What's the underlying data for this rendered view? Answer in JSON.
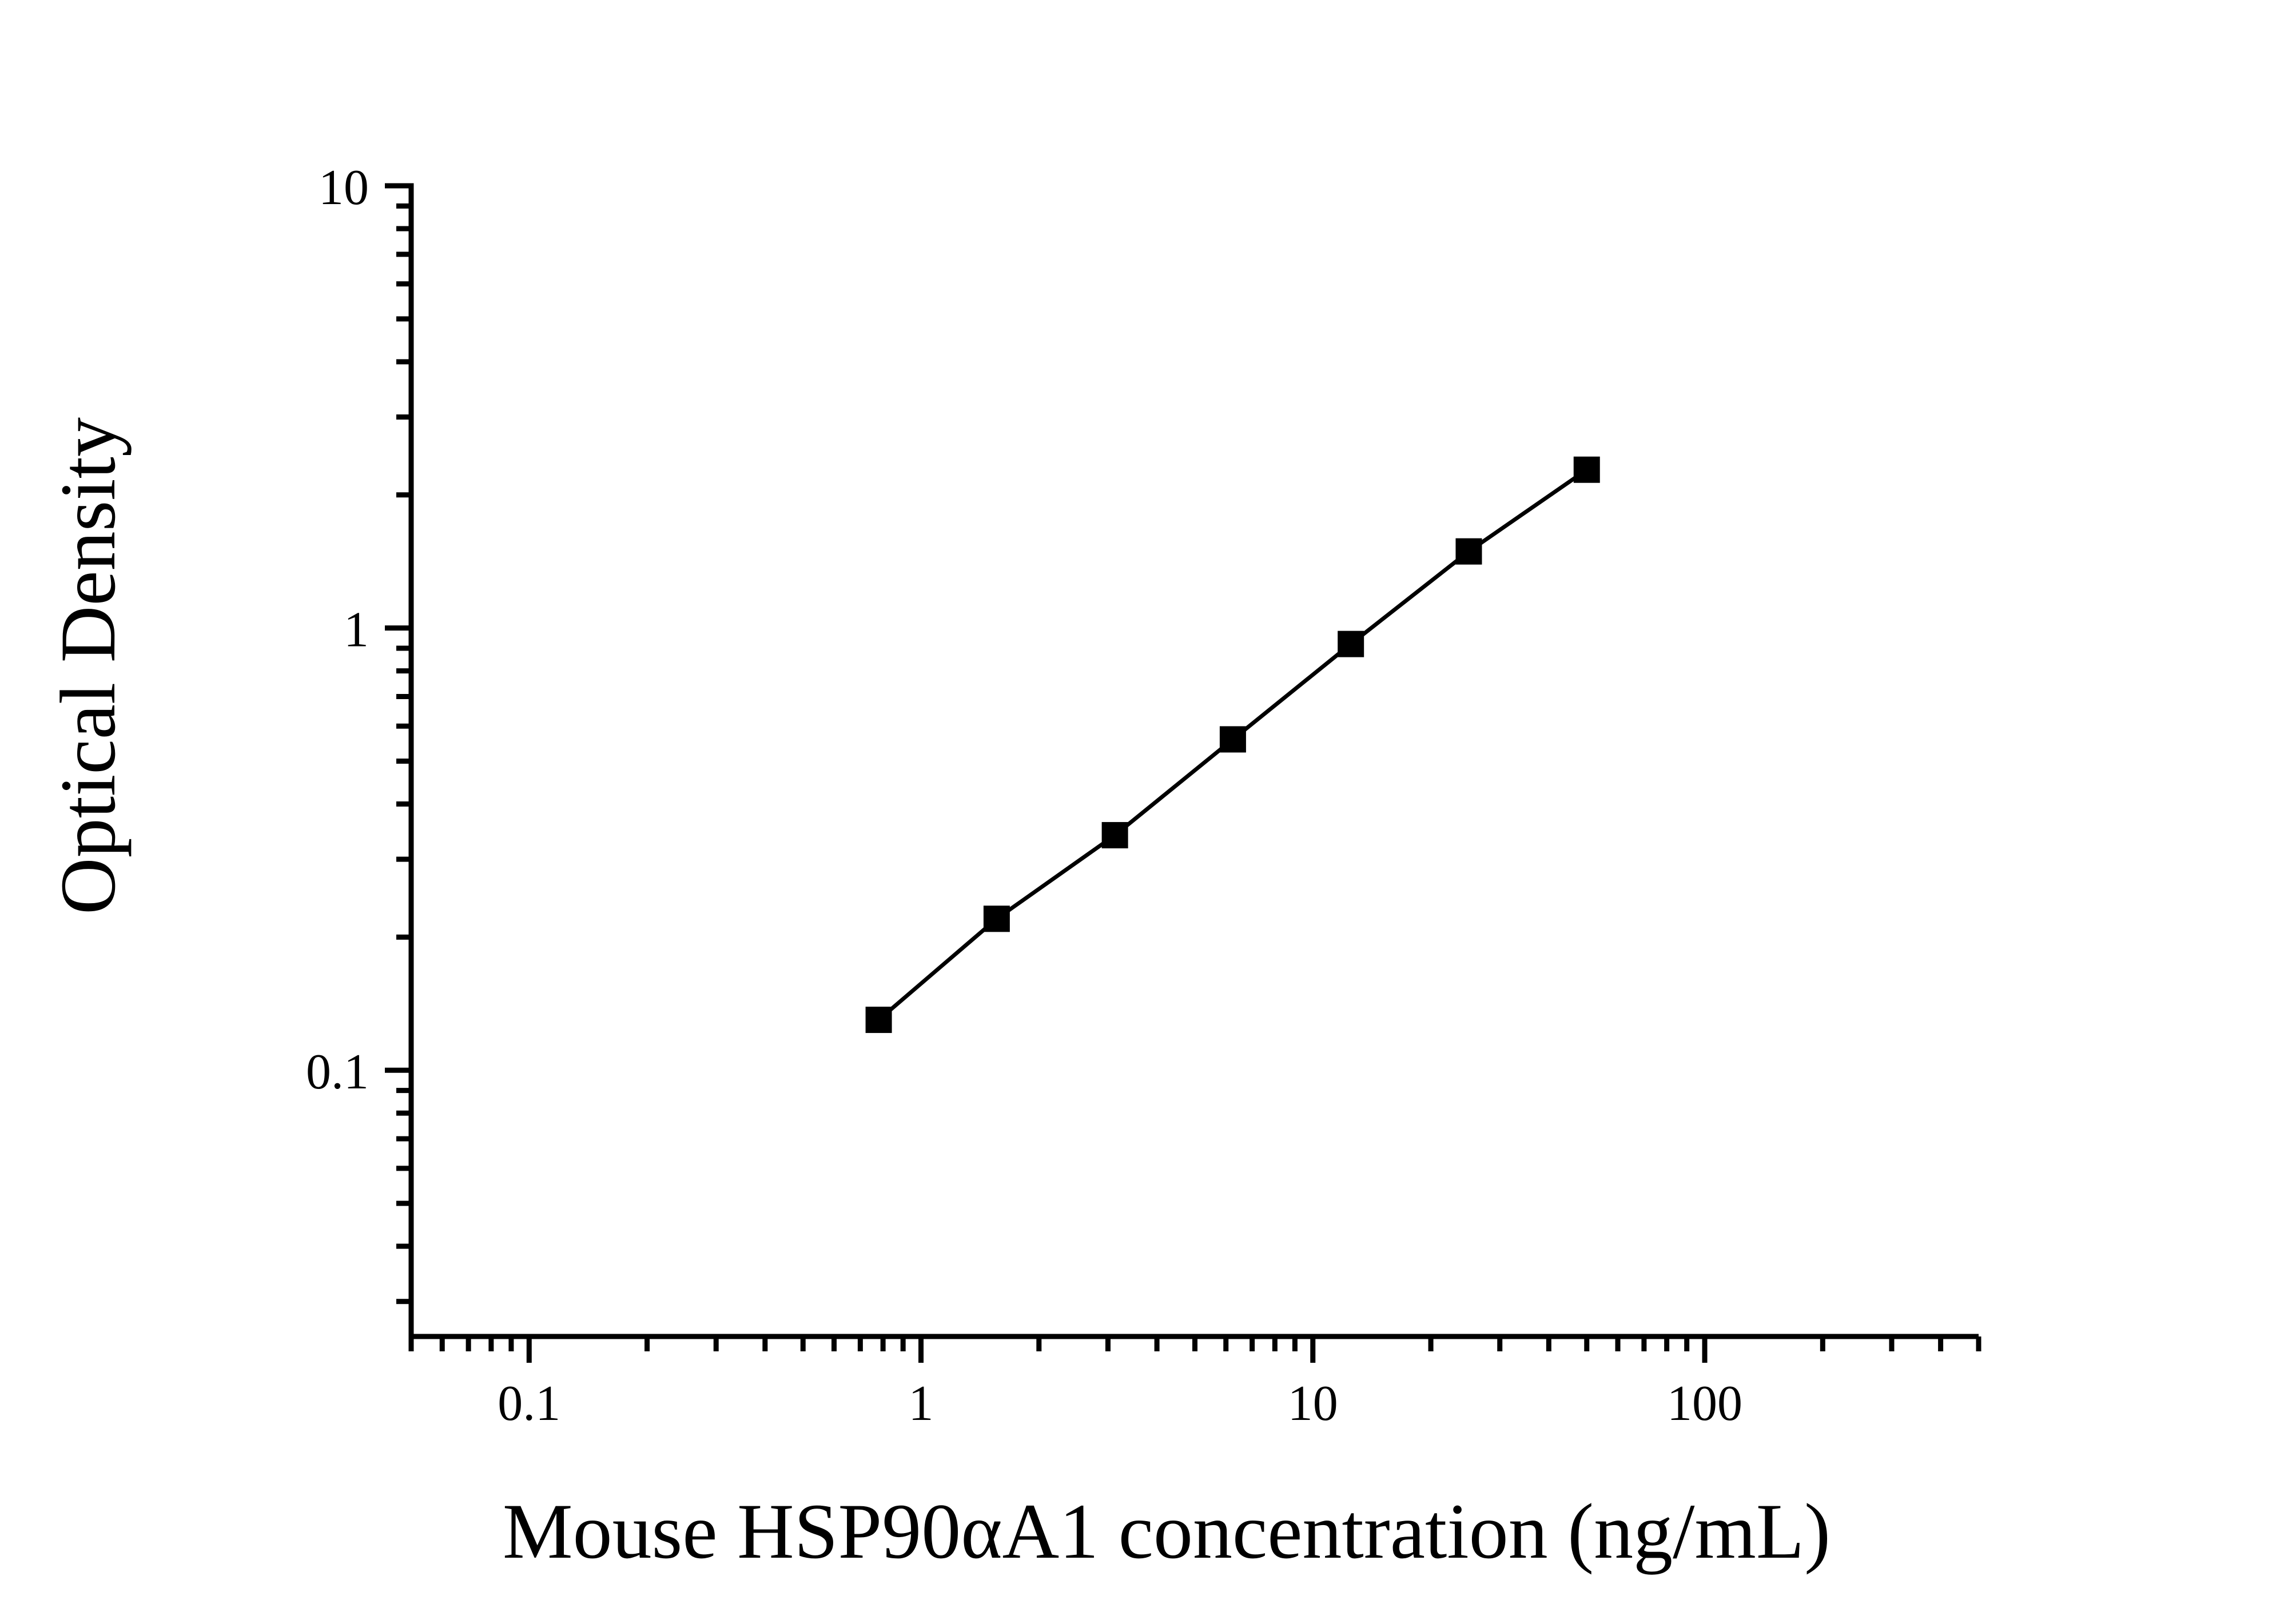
{
  "figure": {
    "background_color": "#ffffff",
    "ink_color": "#000000"
  },
  "chart_data": {
    "type": "line",
    "marker": "filled-square",
    "marker_color": "#000000",
    "line_color": "#000000",
    "x": [
      0.78,
      1.56,
      3.125,
      6.25,
      12.5,
      25,
      50
    ],
    "y": [
      0.13,
      0.22,
      0.34,
      0.56,
      0.92,
      1.49,
      2.28
    ],
    "xlabel": "Mouse HSP90αA1 concentration (ng/mL)",
    "ylabel": "Optical Density",
    "x_scale": "log",
    "y_scale": "log",
    "xlim": [
      0.05,
      500
    ],
    "ylim": [
      0.025,
      10
    ],
    "x_major_ticks": [
      0.1,
      1,
      10,
      100
    ],
    "x_major_tick_labels": [
      "0.1",
      "1",
      "10",
      "100"
    ],
    "y_major_ticks": [
      0.1,
      1,
      10
    ],
    "y_major_tick_labels": [
      "0.1",
      "1",
      "10"
    ],
    "grid": "off",
    "legend": "none"
  }
}
